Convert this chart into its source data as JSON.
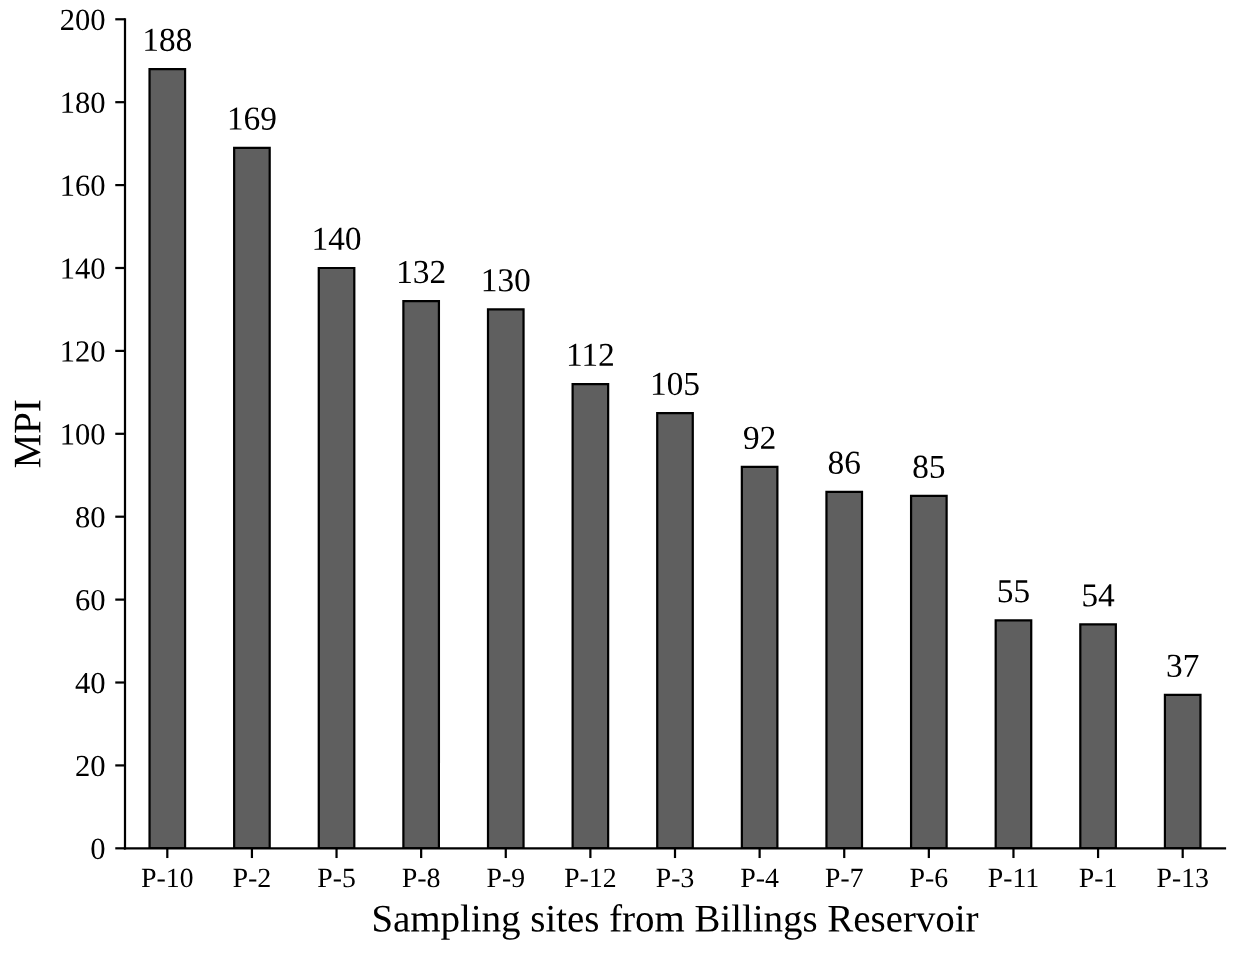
{
  "chart_data": {
    "type": "bar",
    "xlabel": "Sampling sites from Billings Reservoir",
    "ylabel": "MPI",
    "categories": [
      "P-10",
      "P-2",
      "P-5",
      "P-8",
      "P-9",
      "P-12",
      "P-3",
      "P-4",
      "P-7",
      "P-6",
      "P-11",
      "P-1",
      "P-13"
    ],
    "values": [
      188,
      169,
      140,
      132,
      130,
      112,
      105,
      92,
      86,
      85,
      55,
      54,
      37
    ],
    "color": "#5f5f5f",
    "ylim": [
      0,
      200
    ],
    "yticks": [
      0,
      20,
      40,
      60,
      80,
      100,
      120,
      140,
      160,
      180,
      200
    ],
    "data_labels": true,
    "grid": false
  }
}
